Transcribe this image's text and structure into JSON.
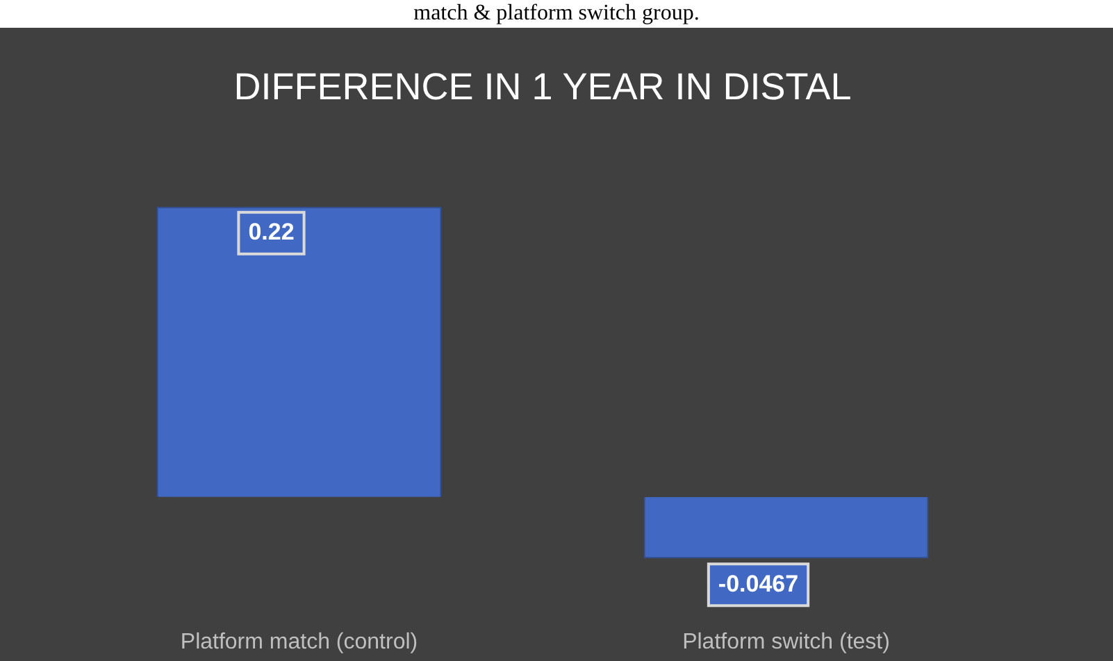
{
  "chart_data": {
    "type": "bar",
    "title": "DIFFERENCE IN 1 YEAR IN DISTAL",
    "annotations": [
      "match & platform switch group."
    ],
    "categories": [
      "Platform match (control)",
      "Platform switch (test)"
    ],
    "values": [
      0.22,
      -0.0467
    ],
    "color": "#4169c4",
    "data_labels": true,
    "legend": false,
    "grid": false
  }
}
